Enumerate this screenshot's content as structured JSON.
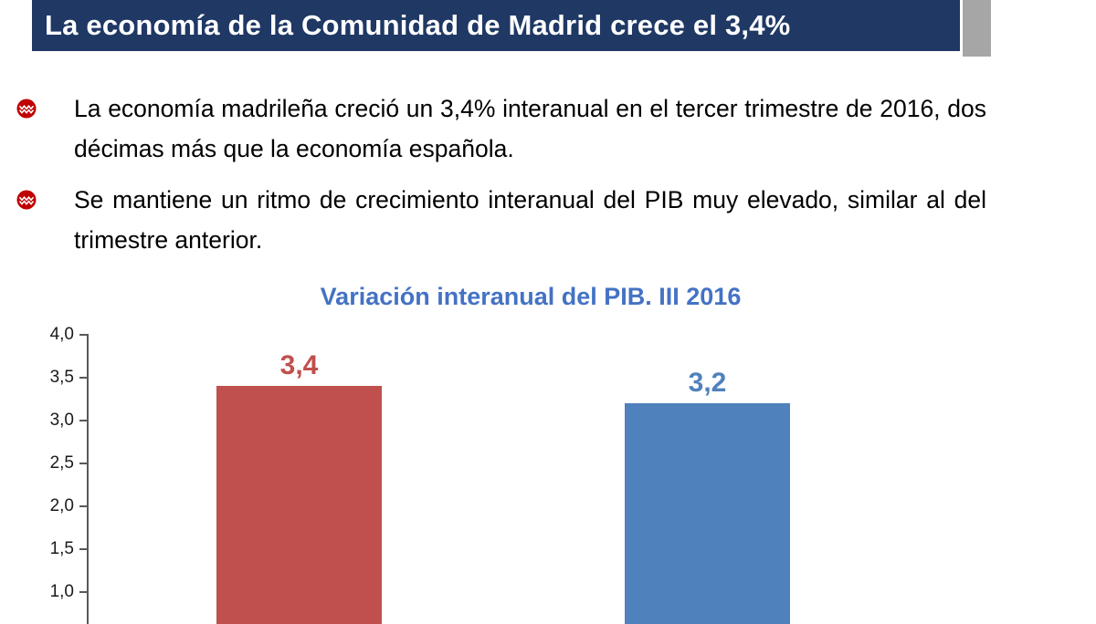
{
  "header": {
    "title": "La economía de la Comunidad de Madrid crece el 3,4%"
  },
  "bullets": [
    {
      "text": "La economía madrileña creció un 3,4% interanual en el tercer trimestre de 2016, dos décimas más que la economía española."
    },
    {
      "text": "Se mantiene un ritmo de crecimiento interanual del PIB muy elevado, similar al del trimestre anterior."
    }
  ],
  "colors": {
    "banner_bg": "#1F3864",
    "banner_text": "#FFFFFF",
    "corner_block": "#A6A6A6",
    "bullet_icon": "#C00000",
    "chart_title": "#4472C4",
    "bar_left": "#C0504D",
    "bar_right": "#4F81BD",
    "axis": "#595959"
  },
  "chart_data": {
    "type": "bar",
    "title": "Variación interanual del PIB. III 2016",
    "series": [
      {
        "label": "3,4",
        "value": 3.4,
        "color": "#C0504D"
      },
      {
        "label": "3,2",
        "value": 3.2,
        "color": "#4F81BD"
      }
    ],
    "yticks": [
      "4,0",
      "3,5",
      "3,0",
      "2,5",
      "2,0",
      "1,5",
      "1,0"
    ],
    "ylim_visible": [
      1.0,
      4.0
    ],
    "grid": false,
    "legend": false
  }
}
